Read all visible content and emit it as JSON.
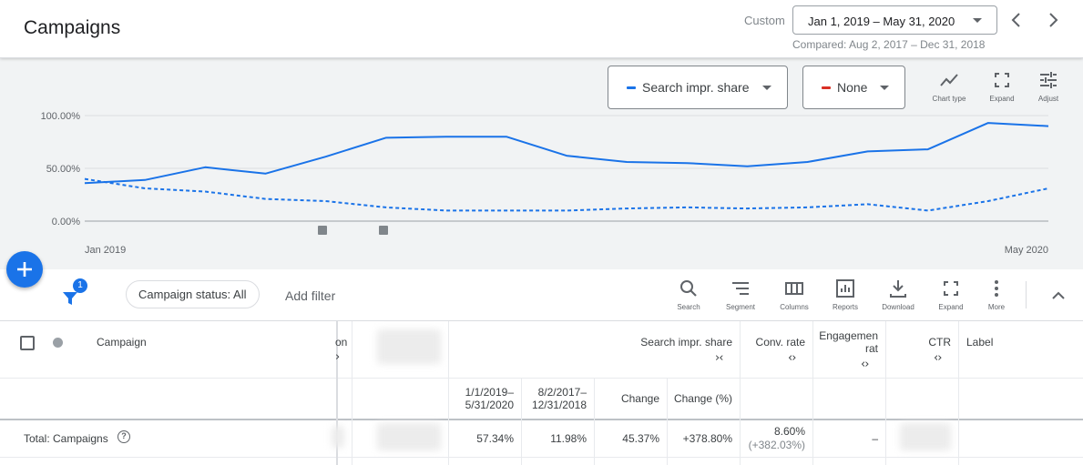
{
  "header": {
    "title": "Campaigns",
    "date_mode": "Custom",
    "date_range": "Jan 1, 2019 – May 31, 2020",
    "compared": "Compared: Aug 2, 2017 – Dec 31, 2018"
  },
  "chart_controls": {
    "metric1": {
      "label": "Search impr. share",
      "color": "#1a73e8"
    },
    "metric2": {
      "label": "None",
      "color": "#d93025"
    },
    "tools": {
      "chart_type": "Chart type",
      "expand": "Expand",
      "adjust": "Adjust"
    }
  },
  "chart_data": {
    "type": "line",
    "y_ticks": [
      "100.00%",
      "50.00%",
      "0.00%"
    ],
    "ylim": [
      0,
      100
    ],
    "x_labels": [
      "Jan 2019",
      "May 2020"
    ],
    "grid": true,
    "series": [
      {
        "style": "solid",
        "color": "#1a73e8",
        "values": [
          36,
          39,
          51,
          45,
          61,
          79,
          80,
          80,
          62,
          56,
          55,
          52,
          56,
          66,
          68,
          93,
          90
        ]
      },
      {
        "style": "dashed",
        "color": "#1a73e8",
        "values": [
          40,
          31,
          28,
          21,
          19,
          13,
          10,
          10,
          10,
          12,
          13,
          12,
          13,
          16,
          10,
          19,
          31
        ]
      }
    ],
    "annotation_markers": [
      5,
      6
    ]
  },
  "toolbar": {
    "filter_count": "1",
    "status_chip": "Campaign status: All",
    "add_filter": "Add filter",
    "tools": {
      "search": "Search",
      "segment": "Segment",
      "columns": "Columns",
      "reports": "Reports",
      "download": "Download",
      "expand": "Expand",
      "more": "More"
    }
  },
  "table": {
    "headers": {
      "campaign": "Campaign",
      "truncated": "on",
      "search_impr_share": "Search impr. share",
      "conv_rate": "Conv. rate",
      "engagement": [
        "Engagemen",
        "rat"
      ],
      "ctr": "CTR",
      "label": "Label"
    },
    "subheaders": {
      "period1": [
        "1/1/2019–",
        "5/31/2020"
      ],
      "period2": [
        "8/2/2017–",
        "12/31/2018"
      ],
      "change": "Change",
      "change_pct": "Change (%)"
    },
    "total_row": {
      "label": "Total: Campaigns",
      "period1": "57.34%",
      "period2": "11.98%",
      "change": "45.37%",
      "change_pct": "+378.80%",
      "conv_rate": "8.60%",
      "conv_rate_change": "(+382.03%)",
      "engagement": "–"
    }
  }
}
